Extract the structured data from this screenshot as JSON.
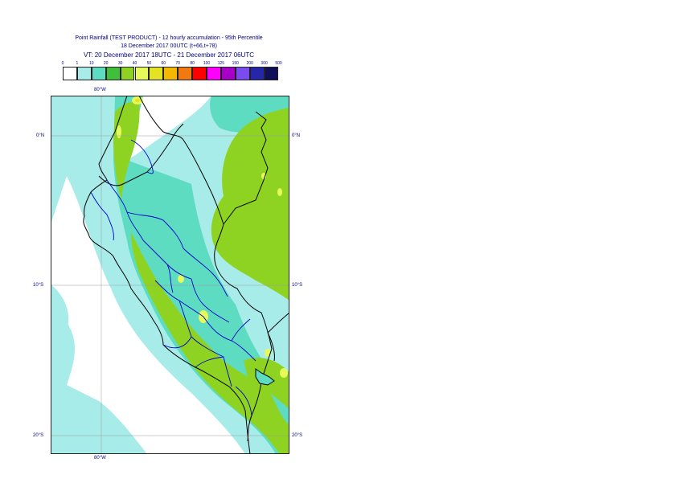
{
  "title": {
    "line1": "Point Rainfall (TEST PRODUCT) - 12 hourly accumulation - 95th Percentile",
    "line2": "18 December 2017 00UTC (t+66,t+78)",
    "line3": "VT: 20 December 2017 18UTC - 21 December 2017 06UTC"
  },
  "legend": {
    "labels": [
      "0",
      "1",
      "10",
      "20",
      "30",
      "40",
      "50",
      "60",
      "70",
      "80",
      "100",
      "125",
      "150",
      "200",
      "300",
      "500"
    ],
    "colors": [
      "#ffffff",
      "#a8ecea",
      "#5ddcc2",
      "#3fbf3a",
      "#8fd322",
      "#e6fb5a",
      "#e3e324",
      "#f5b800",
      "#f07a10",
      "#ff0000",
      "#ff00ff",
      "#a600c8",
      "#7a4cf0",
      "#2626a8",
      "#10105a"
    ]
  },
  "axes": {
    "lon_top": "80°W",
    "lon_bottom": "80°W",
    "lat_0_left": "0°N",
    "lat_0_right": "0°N",
    "lat_10_left": "10°S",
    "lat_10_right": "10°S",
    "lat_20_left": "20°S",
    "lat_20_right": "20°S"
  },
  "map_colors": {
    "ocean_white": "#ffffff",
    "light_cyan": "#a8ecea",
    "teal": "#5ddcc2",
    "green": "#8fd322",
    "bright": "#e6fb5a",
    "yellow": "#e3e324",
    "border_black": "#000000",
    "border_blue": "#0000cc"
  }
}
